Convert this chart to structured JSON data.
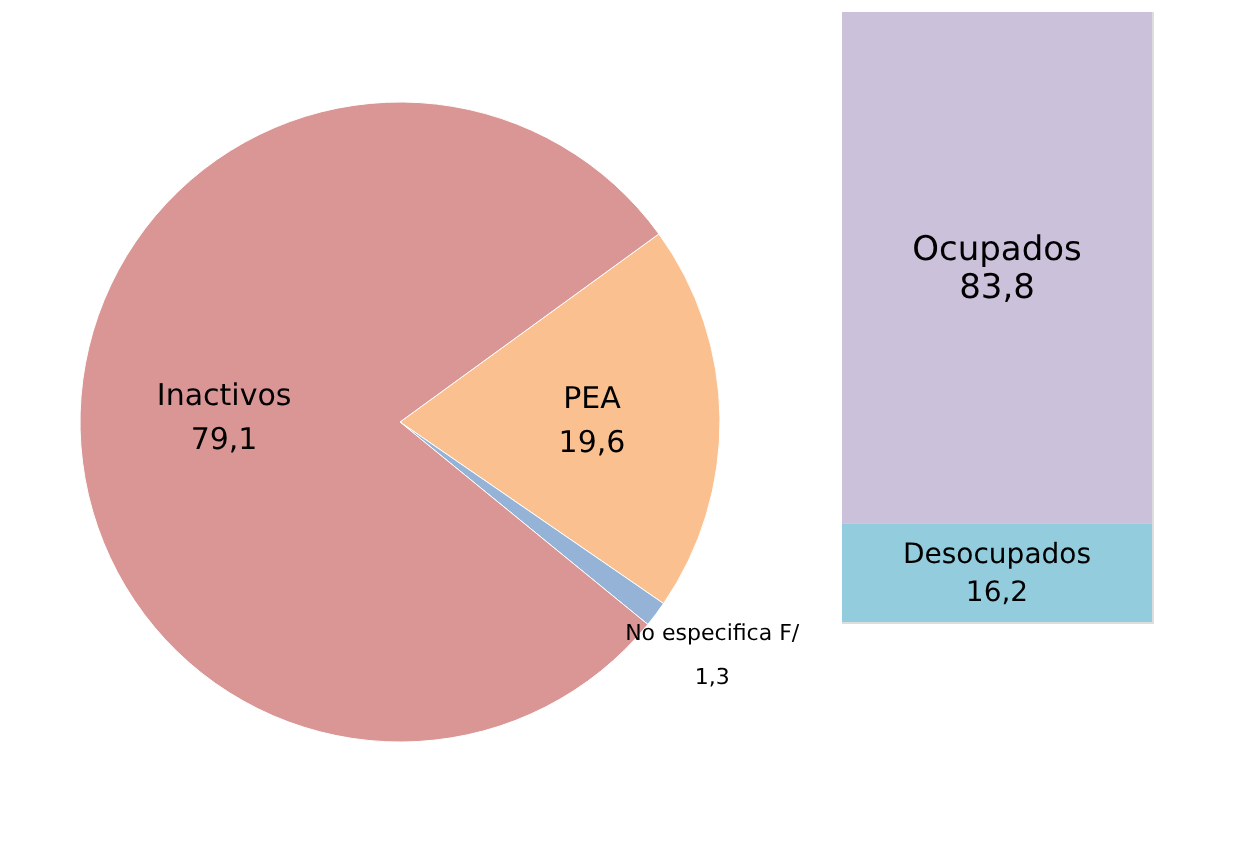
{
  "chart_data": [
    {
      "type": "pie",
      "categories": [
        "PEA",
        "No especifica F/",
        "Inactivos"
      ],
      "values": [
        19.6,
        1.3,
        79.1
      ],
      "colors": [
        "#fac090",
        "#95b3d7",
        "#d99694"
      ],
      "value_labels": [
        "19,6",
        "1,3",
        "79,1"
      ]
    },
    {
      "type": "bar",
      "stacked": true,
      "categories": [
        null
      ],
      "series": [
        {
          "name": "Desocupados",
          "color": "#93cddd",
          "values": [
            16.2
          ],
          "value_labels": [
            "16,2"
          ]
        },
        {
          "name": "Ocupados",
          "color": "#ccc1da",
          "values": [
            83.8
          ],
          "value_labels": [
            "83,8"
          ]
        }
      ]
    }
  ]
}
